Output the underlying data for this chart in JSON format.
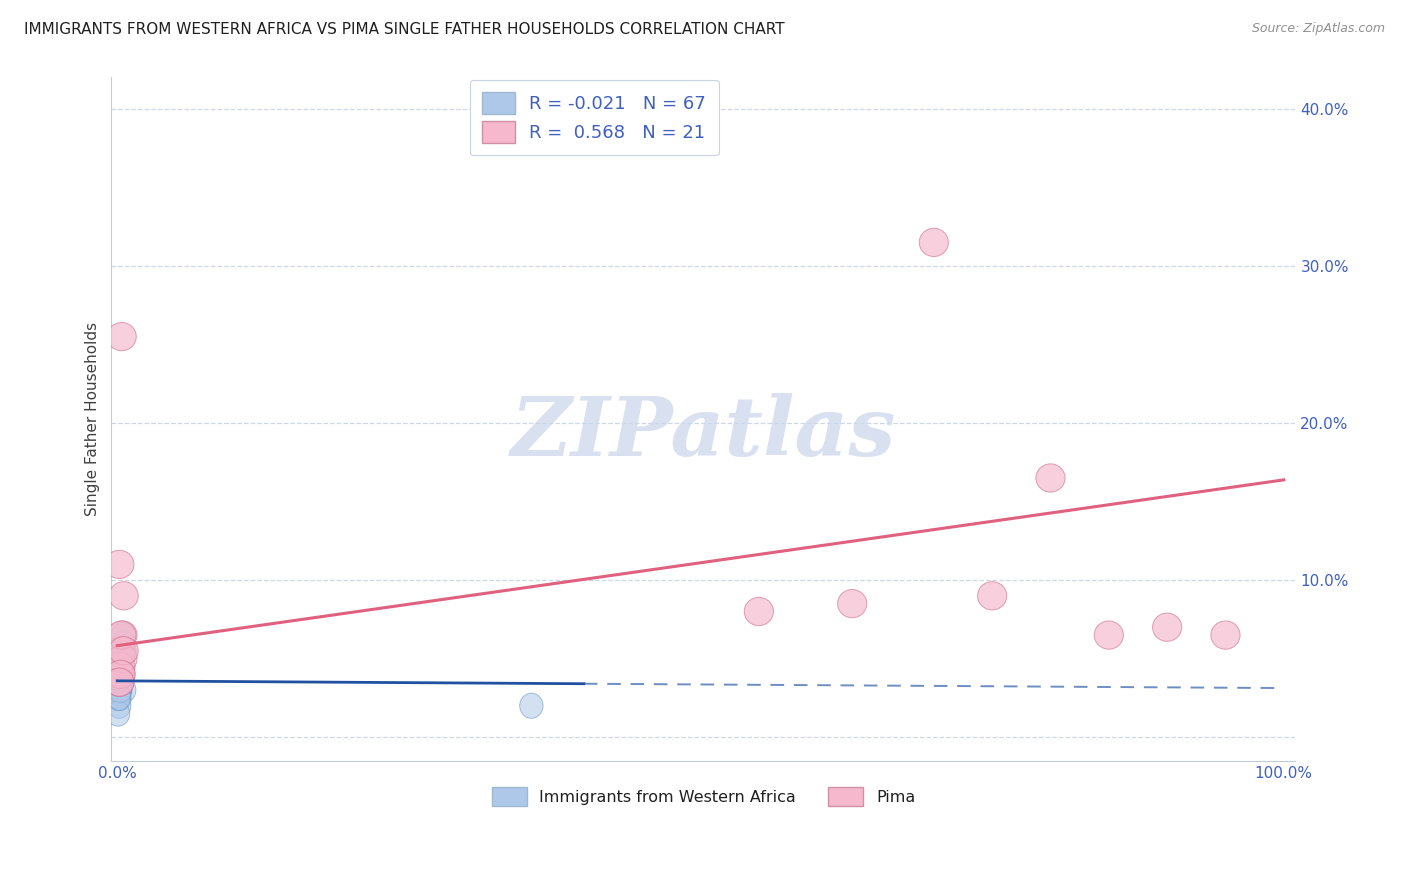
{
  "title": "IMMIGRANTS FROM WESTERN AFRICA VS PIMA SINGLE FATHER HOUSEHOLDS CORRELATION CHART",
  "source": "Source: ZipAtlas.com",
  "ylabel": "Single Father Households",
  "R_blue": -0.021,
  "N_blue": 67,
  "R_pink": 0.568,
  "N_pink": 21,
  "legend_label_blue": "Immigrants from Western Africa",
  "legend_label_pink": "Pima",
  "watermark_text": "ZIPatlas",
  "blue_fill": "#adc8e8",
  "blue_edge": "#6090c0",
  "blue_line": "#2050a0",
  "pink_fill": "#f5b8cc",
  "pink_edge": "#d07090",
  "pink_line": "#e06080",
  "axis_label_color": "#4060c0",
  "title_color": "#202020",
  "source_color": "#909090",
  "grid_color": "#ccd8e4",
  "watermark_color": "#cdd8ec",
  "blue_x": [
    0.15,
    0.22,
    0.08,
    0.45,
    0.3,
    0.55,
    0.18,
    0.28,
    0.35,
    0.1,
    0.6,
    0.4,
    0.25,
    0.2,
    0.38,
    0.5,
    0.12,
    0.28,
    0.18,
    0.42,
    0.32,
    0.26,
    0.09,
    0.16,
    0.24,
    0.34,
    0.44,
    0.55,
    0.19,
    0.27,
    0.07,
    0.36,
    0.28,
    0.15,
    0.46,
    0.24,
    0.33,
    0.16,
    0.11,
    0.22,
    0.52,
    0.14,
    0.23,
    0.32,
    0.42,
    0.06,
    0.14,
    0.24,
    0.33,
    0.44,
    0.2,
    0.29,
    0.1,
    0.38,
    0.21,
    0.3,
    0.48,
    35.5,
    0.27,
    0.38,
    0.17,
    0.07,
    0.26,
    0.36,
    0.46,
    0.19,
    0.25
  ],
  "blue_y": [
    3.0,
    3.5,
    2.5,
    4.5,
    4.0,
    5.5,
    3.0,
    3.5,
    4.0,
    2.5,
    3.0,
    4.5,
    4.0,
    3.0,
    3.5,
    5.0,
    2.5,
    3.5,
    3.0,
    4.0,
    4.5,
    4.0,
    2.5,
    3.0,
    3.5,
    4.0,
    4.5,
    5.5,
    3.0,
    3.5,
    2.5,
    4.0,
    3.5,
    3.0,
    4.5,
    3.5,
    4.0,
    3.0,
    2.5,
    3.5,
    6.0,
    3.0,
    3.5,
    4.0,
    5.0,
    2.5,
    3.0,
    3.5,
    4.0,
    4.5,
    3.0,
    3.5,
    2.5,
    4.0,
    3.0,
    3.5,
    4.5,
    2.0,
    3.5,
    4.0,
    2.0,
    1.5,
    3.0,
    4.0,
    6.5,
    2.5,
    4.0
  ],
  "pink_x": [
    0.18,
    0.45,
    0.28,
    0.38,
    0.55,
    63.0,
    75.0,
    55.0,
    80.0,
    85.0,
    90.0,
    95.0,
    70.0,
    0.28,
    0.18,
    0.45,
    0.35,
    0.55,
    0.28,
    0.18,
    0.38
  ],
  "pink_y": [
    11.0,
    6.5,
    4.0,
    5.5,
    9.0,
    8.5,
    9.0,
    8.0,
    16.5,
    6.5,
    7.0,
    6.5,
    31.5,
    4.5,
    3.5,
    5.0,
    6.5,
    5.5,
    4.0,
    3.5,
    25.5
  ],
  "xlim": [
    -0.5,
    101
  ],
  "ylim": [
    -1.5,
    42
  ],
  "yticks": [
    0,
    10,
    20,
    30,
    40
  ],
  "ytick_labels": [
    "",
    "10.0%",
    "20.0%",
    "30.0%",
    "40.0%"
  ],
  "xticks": [
    0,
    20,
    40,
    60,
    80,
    100
  ],
  "xtick_labels": [
    "0.0%",
    "",
    "",
    "",
    "",
    "100.0%"
  ],
  "blue_line_x0": 0,
  "blue_line_x_solid_end": 40,
  "blue_line_x_end": 100,
  "pink_line_x0": 0,
  "pink_line_x_end": 100
}
